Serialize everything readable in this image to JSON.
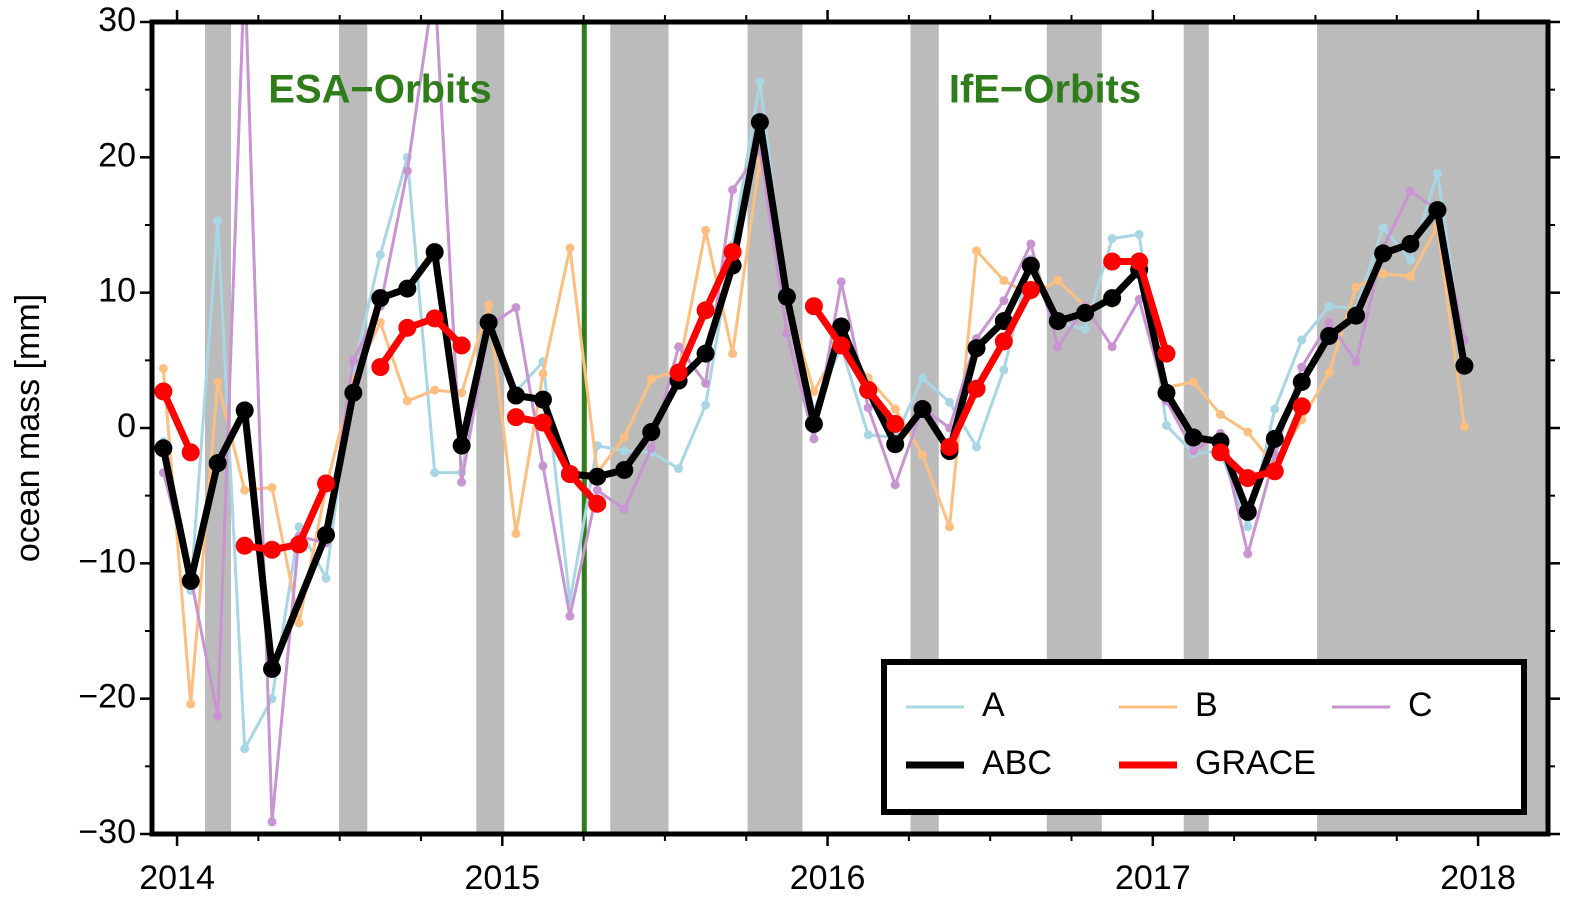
{
  "chart_data": {
    "type": "line",
    "ylabel": "ocean mass [mm]",
    "xlim": [
      2013.923,
      2018.215
    ],
    "ylim": [
      -30,
      30
    ],
    "xticks": [
      2014,
      2015,
      2016,
      2017,
      2018
    ],
    "xminorticks": [
      2014.25,
      2014.5,
      2014.75,
      2015.25,
      2015.5,
      2015.75,
      2016.25,
      2016.5,
      2016.75,
      2017.25,
      2017.5,
      2017.75
    ],
    "yticks": [
      {
        "value": -30,
        "label": "−30"
      },
      {
        "value": -20,
        "label": "−20"
      },
      {
        "value": -10,
        "label": "−10"
      },
      0,
      10,
      20,
      30
    ],
    "yminorticks": [
      -25,
      -15,
      -5,
      5,
      15,
      25
    ],
    "shaded_spans": [
      [
        2014.086,
        2014.166
      ],
      [
        2014.498,
        2014.585
      ],
      [
        2014.92,
        2015.006
      ],
      [
        2015.332,
        2015.511
      ],
      [
        2015.754,
        2015.923
      ],
      [
        2016.255,
        2016.342
      ],
      [
        2016.674,
        2016.843
      ],
      [
        2017.095,
        2017.172
      ],
      [
        2017.505,
        2018.215
      ]
    ],
    "shade_color": "#bbbbbb",
    "vlines": [
      2015.252
    ],
    "vline_color": "#2e7d1a",
    "annotations": [
      "ESA−Orbits",
      "IfE−Orbits"
    ],
    "legend": "lower right",
    "x": [
      2013.958,
      2014.042,
      2014.125,
      2014.208,
      2014.292,
      2014.375,
      2014.458,
      2014.542,
      2014.625,
      2014.708,
      2014.792,
      2014.875,
      2014.958,
      2015.042,
      2015.125,
      2015.208,
      2015.292,
      2015.375,
      2015.458,
      2015.542,
      2015.625,
      2015.708,
      2015.792,
      2015.875,
      2015.958,
      2016.042,
      2016.125,
      2016.208,
      2016.292,
      2016.375,
      2016.458,
      2016.542,
      2016.625,
      2016.708,
      2016.792,
      2016.875,
      2016.958,
      2017.042,
      2017.125,
      2017.208,
      2017.292,
      2017.375,
      2017.458,
      2017.542,
      2017.625,
      2017.708,
      2017.792,
      2017.875,
      2017.958
    ],
    "series": [
      {
        "name": "A",
        "color": "#a9d6e5",
        "width": 3,
        "radius": 4.5,
        "values": [
          -1.0,
          -12.0,
          15.3,
          -23.7,
          -20.0,
          -7.3,
          -11.1,
          4.2,
          12.8,
          20.0,
          -3.3,
          -3.3,
          7.7,
          2.7,
          4.9,
          -12.8,
          -1.3,
          -1.7,
          -1.8,
          -3.0,
          1.7,
          13.5,
          25.6,
          9.5,
          1.3,
          6.0,
          -0.5,
          -0.7,
          3.7,
          1.9,
          -1.4,
          4.3,
          12.5,
          7.8,
          7.3,
          14.0,
          14.3,
          0.2,
          -1.9,
          -1.7,
          -7.3,
          1.4,
          6.5,
          9.0,
          8.8,
          14.8,
          12.4,
          18.8,
          5.0
        ]
      },
      {
        "name": "B",
        "color": "#fdbf7f",
        "width": 3,
        "radius": 4.5,
        "values": [
          4.4,
          -20.4,
          3.4,
          -4.6,
          -4.4,
          -14.4,
          -4.4,
          3.6,
          7.8,
          2.0,
          2.8,
          2.6,
          9.1,
          -7.8,
          4.0,
          13.3,
          -3.3,
          -0.7,
          3.6,
          4.3,
          14.6,
          5.5,
          19.8,
          9.6,
          2.7,
          6.3,
          3.7,
          1.4,
          -2.0,
          -7.3,
          13.1,
          10.9,
          9.8,
          10.9,
          9.0,
          9.2,
          11.8,
          3.0,
          3.4,
          1.0,
          -0.3,
          -2.8,
          0.6,
          4.1,
          10.4,
          11.4,
          11.2,
          14.9,
          0.1
        ]
      },
      {
        "name": "C",
        "color": "#c994d2",
        "width": 3,
        "radius": 4.5,
        "values": [
          -3.3,
          -11.0,
          -21.3,
          34.0,
          -29.1,
          -8.0,
          -8.5,
          5.0,
          9.0,
          19.0,
          33.0,
          -4.0,
          7.5,
          8.9,
          -2.8,
          -13.9,
          -4.6,
          -6.0,
          -1.5,
          6.0,
          3.3,
          17.6,
          20.5,
          7.0,
          -0.8,
          10.8,
          1.5,
          -4.2,
          1.5,
          0.0,
          6.6,
          9.4,
          13.6,
          6.0,
          9.0,
          6.0,
          9.5,
          2.0,
          -1.7,
          -0.4,
          -9.3,
          -2.0,
          4.5,
          7.8,
          4.9,
          13.3,
          17.5,
          16.1,
          6.5
        ]
      },
      {
        "name": "ABC",
        "color": "#000000",
        "width": 7,
        "radius": 9,
        "x": [
          2013.958,
          2014.042,
          2014.125,
          2014.208,
          2014.292,
          2014.458,
          2014.542,
          2014.625,
          2014.708,
          2014.792,
          2014.875,
          2014.958,
          2015.042,
          2015.125,
          2015.208,
          2015.292,
          2015.375,
          2015.458,
          2015.542,
          2015.625,
          2015.708,
          2015.792,
          2015.875,
          2015.958,
          2016.042,
          2016.125,
          2016.208,
          2016.292,
          2016.375,
          2016.458,
          2016.542,
          2016.625,
          2016.708,
          2016.792,
          2016.875,
          2016.958,
          2017.042,
          2017.125,
          2017.208,
          2017.292,
          2017.375,
          2017.458,
          2017.542,
          2017.625,
          2017.708,
          2017.792,
          2017.875,
          2017.958
        ],
        "values": [
          -1.5,
          -11.3,
          -2.6,
          1.3,
          -17.8,
          -7.9,
          2.6,
          9.6,
          10.3,
          13.0,
          -1.3,
          7.8,
          2.4,
          2.1,
          -3.4,
          -3.6,
          -3.1,
          -0.3,
          3.5,
          5.5,
          12.0,
          22.6,
          9.7,
          0.3,
          7.5,
          2.8,
          -1.2,
          1.4,
          -1.7,
          5.9,
          7.9,
          12.0,
          7.9,
          8.5,
          9.6,
          11.7,
          2.6,
          -0.7,
          -1.0,
          -6.2,
          -0.8,
          3.4,
          6.8,
          8.3,
          12.9,
          13.6,
          16.1,
          4.6
        ]
      },
      {
        "name": "GRACE",
        "color": "#ff0000",
        "width": 7,
        "radius": 9,
        "x": [
          2013.958,
          2014.042,
          2014.125,
          2014.208,
          2014.292,
          2014.375,
          2014.458,
          2014.542,
          2014.625,
          2014.708,
          2014.792,
          2014.875,
          2014.958,
          2015.042,
          2015.125,
          2015.208,
          2015.292,
          2015.375,
          2015.542,
          2015.625,
          2015.708,
          2015.792,
          2015.958,
          2016.042,
          2016.125,
          2016.208,
          2016.292,
          2016.375,
          2016.458,
          2016.542,
          2016.625,
          2016.708,
          2016.875,
          2016.958,
          2017.042,
          2017.125,
          2017.208,
          2017.292,
          2017.375,
          2017.458
        ],
        "values": [
          2.7,
          -1.8,
          null,
          -8.7,
          -9.0,
          -8.6,
          -4.1,
          null,
          4.5,
          7.4,
          8.1,
          6.1,
          null,
          0.8,
          0.4,
          -3.4,
          -5.6,
          null,
          4.1,
          8.7,
          13.0,
          null,
          9.0,
          6.1,
          2.8,
          0.3,
          null,
          -1.4,
          2.9,
          6.4,
          10.2,
          null,
          12.3,
          12.3,
          5.5,
          null,
          -1.8,
          -3.7,
          -3.2,
          1.6
        ]
      }
    ]
  }
}
